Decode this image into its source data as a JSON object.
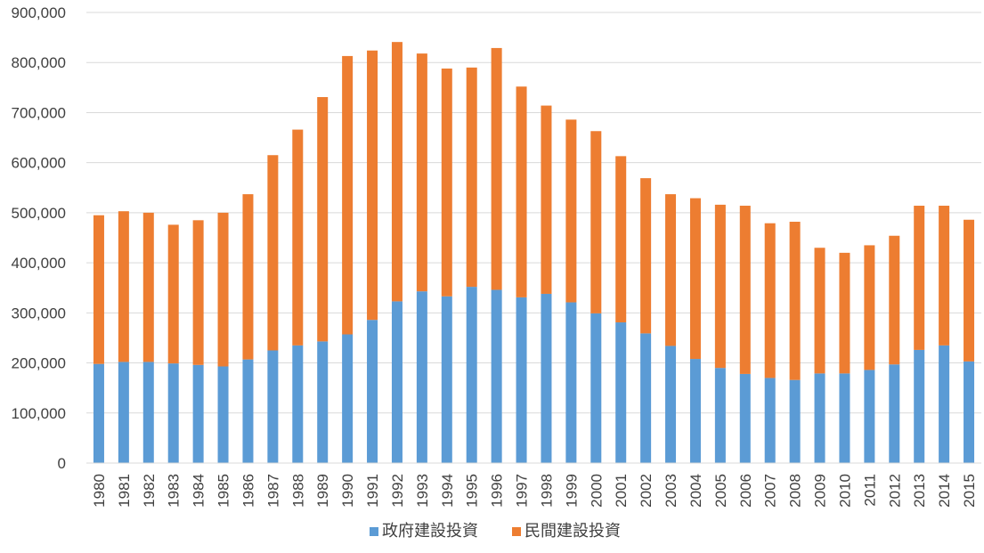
{
  "chart_data": {
    "type": "bar",
    "stacked": true,
    "title": "",
    "xlabel": "",
    "ylabel": "",
    "ylim": [
      0,
      900000
    ],
    "yticks": [
      0,
      100000,
      200000,
      300000,
      400000,
      500000,
      600000,
      700000,
      800000,
      900000
    ],
    "ytick_labels": [
      "0",
      "100,000",
      "200,000",
      "300,000",
      "400,000",
      "500,000",
      "600,000",
      "700,000",
      "800,000",
      "900,000"
    ],
    "grid": true,
    "legend_position": "bottom",
    "categories": [
      "1980",
      "1981",
      "1982",
      "1983",
      "1984",
      "1985",
      "1986",
      "1987",
      "1988",
      "1989",
      "1990",
      "1991",
      "1992",
      "1993",
      "1994",
      "1995",
      "1996",
      "1997",
      "1998",
      "1999",
      "2000",
      "2001",
      "2002",
      "2003",
      "2004",
      "2005",
      "2006",
      "2007",
      "2008",
      "2009",
      "2010",
      "2011",
      "2012",
      "2013",
      "2014",
      "2015"
    ],
    "series": [
      {
        "name": "政府建設投資",
        "color": "#5B9BD5",
        "values": [
          198000,
          202000,
          202000,
          199000,
          196000,
          193000,
          207000,
          225000,
          235000,
          243000,
          257000,
          286000,
          323000,
          343000,
          333000,
          352000,
          346000,
          331000,
          338000,
          321000,
          299000,
          281000,
          259000,
          234000,
          208000,
          190000,
          178000,
          170000,
          166000,
          179000,
          179000,
          186000,
          197000,
          226000,
          235000,
          203000
        ]
      },
      {
        "name": "民間建設投資",
        "color": "#ED7D31",
        "values": [
          297000,
          301000,
          298000,
          277000,
          289000,
          307000,
          330000,
          390000,
          431000,
          488000,
          556000,
          538000,
          518000,
          475000,
          455000,
          438000,
          483000,
          421000,
          376000,
          365000,
          364000,
          332000,
          310000,
          303000,
          321000,
          326000,
          336000,
          309000,
          316000,
          251000,
          241000,
          249000,
          257000,
          288000,
          279000,
          283000
        ]
      }
    ]
  }
}
